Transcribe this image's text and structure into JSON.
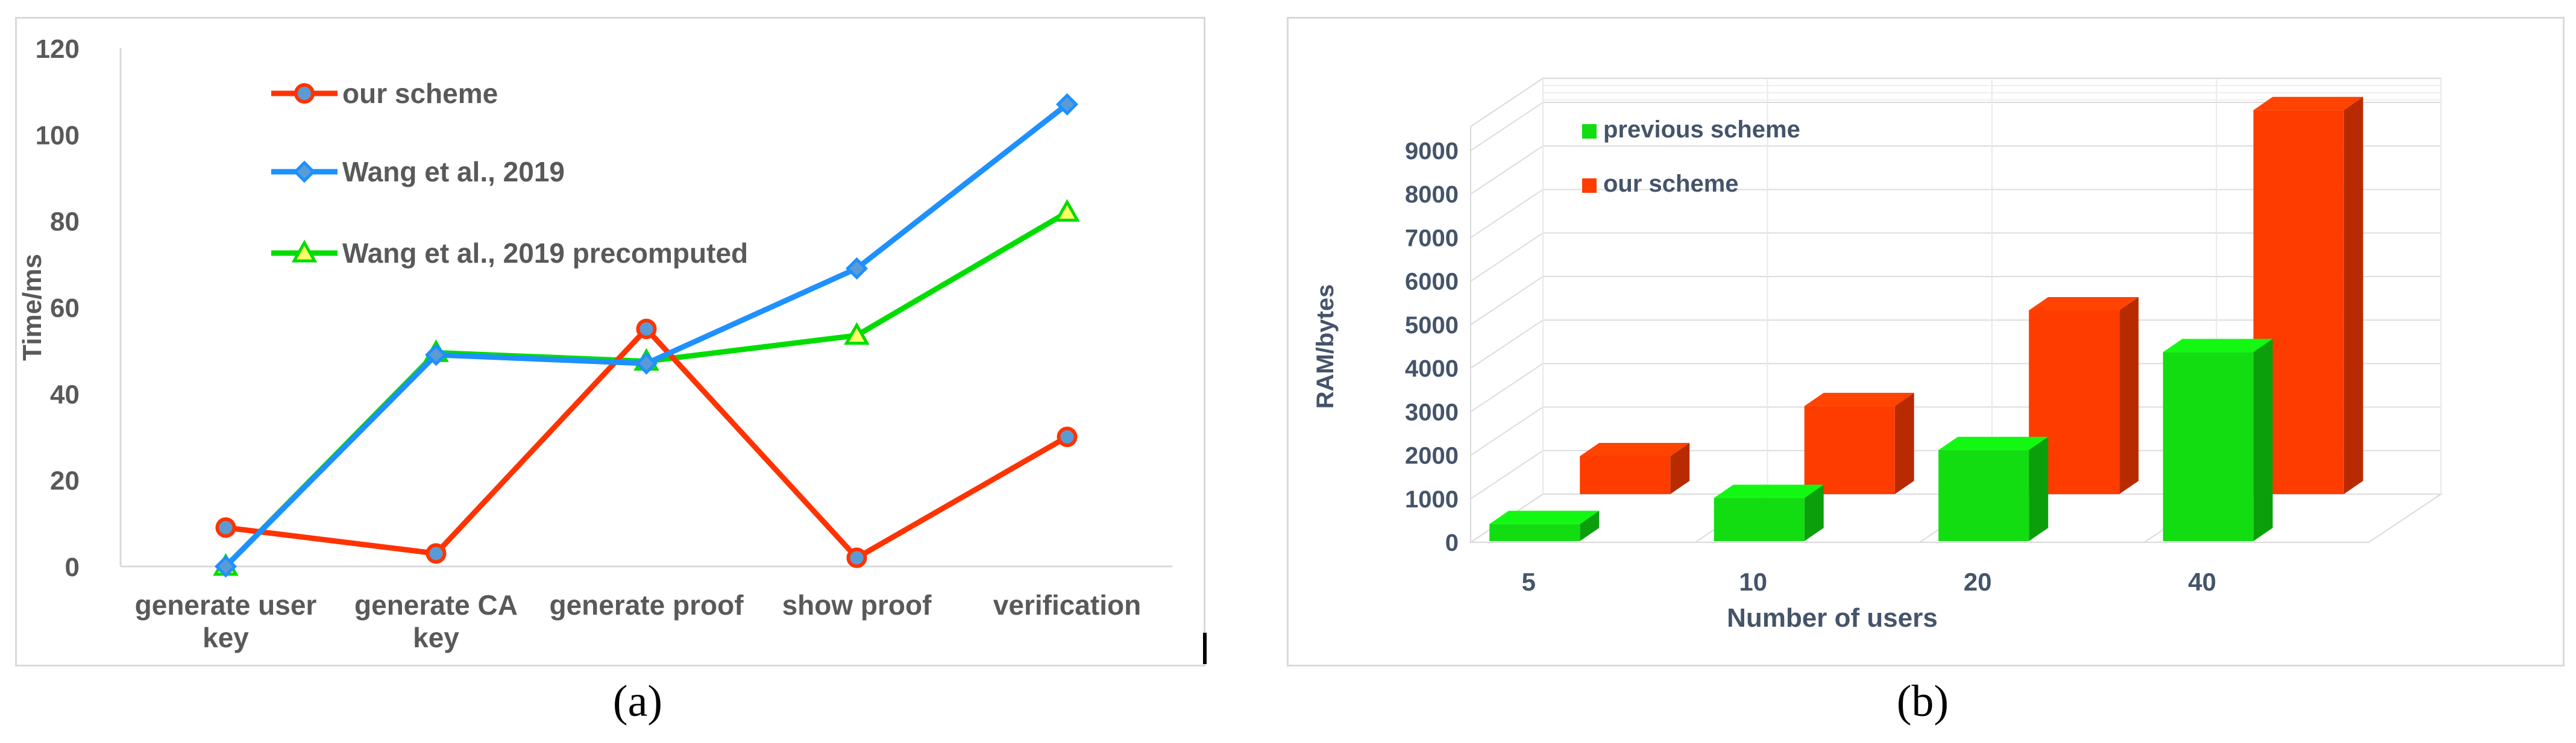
{
  "chart_data": [
    {
      "type": "line",
      "title": "",
      "xlabel": "",
      "ylabel": "Time/ms",
      "ylim": [
        0,
        120
      ],
      "yticks": [
        0,
        20,
        40,
        60,
        80,
        100,
        120
      ],
      "categories": [
        "generate user key",
        "generate CA key",
        "generate proof",
        "show proof",
        "verification"
      ],
      "category_lines": [
        [
          "generate user",
          "key"
        ],
        [
          "generate CA",
          "key"
        ],
        [
          "generate proof"
        ],
        [
          "show proof"
        ],
        [
          "verification"
        ]
      ],
      "legend_position": "top-left",
      "grid": false,
      "series": [
        {
          "name": "our scheme",
          "color": "#ff3300",
          "marker": "circle",
          "values": [
            9,
            3,
            55,
            2,
            30
          ]
        },
        {
          "name": "Wang et al., 2019",
          "color": "#1e90ff",
          "marker": "diamond",
          "values": [
            0,
            49,
            47,
            69,
            107
          ]
        },
        {
          "name": "Wang et al., 2019 precomputed",
          "color": "#00dd00",
          "marker": "triangle",
          "values": [
            0,
            49.5,
            47.5,
            53.5,
            82
          ]
        }
      ]
    },
    {
      "type": "bar",
      "title": "",
      "xlabel": "Number of users",
      "ylabel": "RAM/bytes",
      "ylim": [
        0,
        9000
      ],
      "yticks": [
        0,
        1000,
        2000,
        3000,
        4000,
        5000,
        6000,
        7000,
        8000,
        9000
      ],
      "categories": [
        "5",
        "10",
        "20",
        "40"
      ],
      "legend_position": "top-left",
      "grid": true,
      "series": [
        {
          "name": "previous scheme",
          "color": "#11dd11",
          "values": [
            600,
            1200,
            2300,
            4550
          ]
        },
        {
          "name": "our scheme",
          "color": "#ff3c00",
          "values": [
            1150,
            2300,
            4500,
            9100
          ]
        }
      ]
    }
  ],
  "panel_labels": {
    "a": "(a)",
    "b": "(b)"
  }
}
